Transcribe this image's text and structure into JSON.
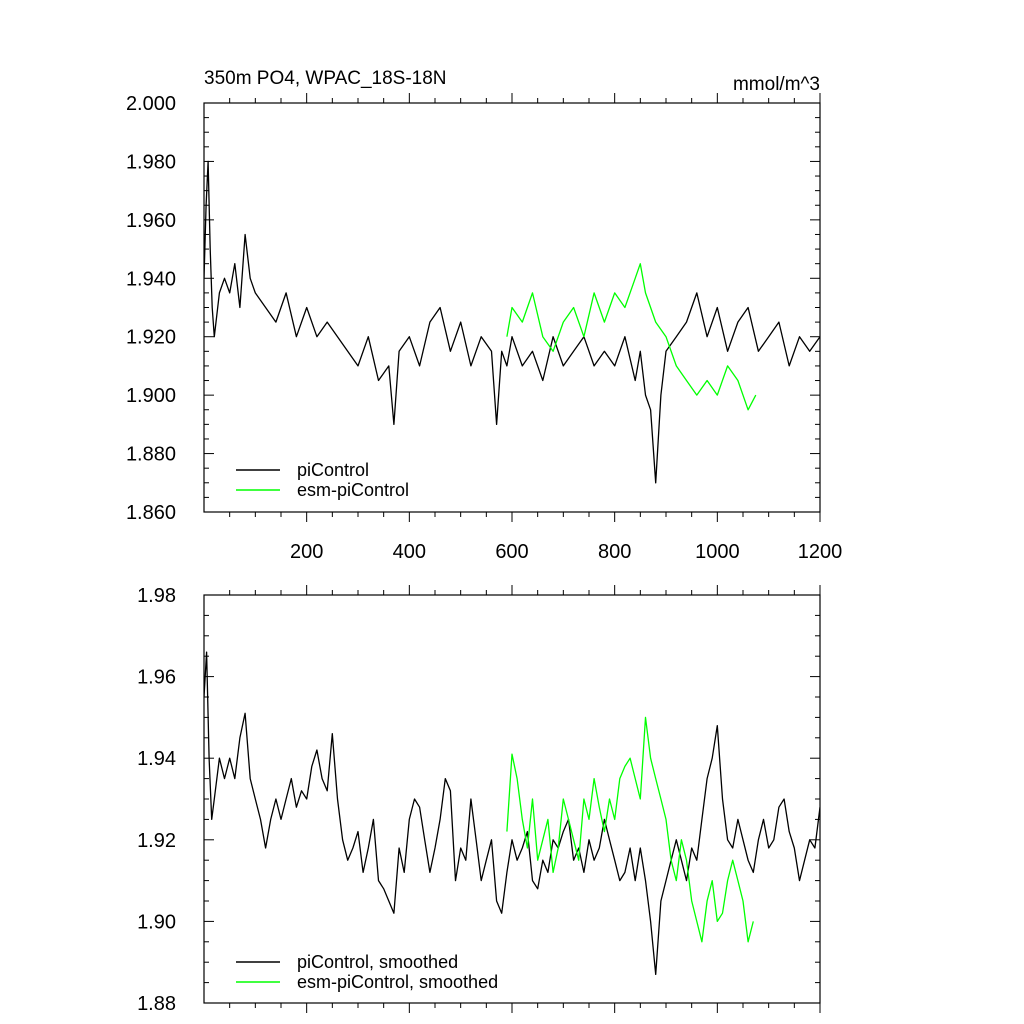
{
  "chart_data": [
    {
      "type": "line",
      "title": "350m PO4, WPAC_18S-18N",
      "units": "mmol/m^3",
      "xlim": [
        0,
        1200
      ],
      "ylim": [
        1.86,
        2.0
      ],
      "x_ticks": [
        200,
        400,
        600,
        800,
        1000,
        1200
      ],
      "x_tick_labels": [
        "200",
        "400",
        "600",
        "800",
        "1000",
        "1200"
      ],
      "y_ticks": [
        1.86,
        1.88,
        1.9,
        1.92,
        1.94,
        1.96,
        1.98,
        2.0
      ],
      "y_tick_labels": [
        "1.860",
        "1.880",
        "1.900",
        "1.920",
        "1.940",
        "1.960",
        "1.980",
        "2.000"
      ],
      "legend_position": "bottom-left",
      "grid": false,
      "series": [
        {
          "name": "piControl",
          "color": "#000000",
          "x": [
            0,
            4,
            8,
            12,
            16,
            20,
            30,
            40,
            50,
            60,
            70,
            80,
            90,
            100,
            120,
            140,
            160,
            180,
            200,
            220,
            240,
            260,
            280,
            300,
            320,
            340,
            360,
            370,
            380,
            400,
            420,
            440,
            460,
            480,
            500,
            520,
            540,
            560,
            570,
            580,
            590,
            600,
            620,
            640,
            660,
            680,
            700,
            720,
            740,
            760,
            780,
            800,
            820,
            840,
            850,
            860,
            870,
            880,
            890,
            900,
            920,
            940,
            960,
            980,
            1000,
            1020,
            1040,
            1060,
            1080,
            1100,
            1120,
            1140,
            1160,
            1180,
            1200
          ],
          "y": [
            1.94,
            1.965,
            1.98,
            1.95,
            1.93,
            1.92,
            1.935,
            1.94,
            1.935,
            1.945,
            1.93,
            1.955,
            1.94,
            1.935,
            1.93,
            1.925,
            1.935,
            1.92,
            1.93,
            1.92,
            1.925,
            1.92,
            1.915,
            1.91,
            1.92,
            1.905,
            1.91,
            1.89,
            1.915,
            1.92,
            1.91,
            1.925,
            1.93,
            1.915,
            1.925,
            1.91,
            1.92,
            1.915,
            1.89,
            1.915,
            1.91,
            1.92,
            1.91,
            1.915,
            1.905,
            1.92,
            1.91,
            1.915,
            1.92,
            1.91,
            1.915,
            1.91,
            1.92,
            1.905,
            1.915,
            1.9,
            1.895,
            1.87,
            1.9,
            1.915,
            1.92,
            1.925,
            1.935,
            1.92,
            1.93,
            1.915,
            1.925,
            1.93,
            1.915,
            1.92,
            1.925,
            1.91,
            1.92,
            1.915,
            1.92
          ]
        },
        {
          "name": "esm-piControl",
          "color": "#00ff00",
          "x": [
            590,
            600,
            620,
            640,
            660,
            680,
            700,
            720,
            740,
            760,
            780,
            800,
            820,
            840,
            850,
            860,
            880,
            900,
            920,
            940,
            960,
            980,
            1000,
            1020,
            1040,
            1060,
            1075
          ],
          "y": [
            1.92,
            1.93,
            1.925,
            1.935,
            1.92,
            1.915,
            1.925,
            1.93,
            1.92,
            1.935,
            1.925,
            1.935,
            1.93,
            1.94,
            1.945,
            1.935,
            1.925,
            1.92,
            1.91,
            1.905,
            1.9,
            1.905,
            1.9,
            1.91,
            1.905,
            1.895,
            1.9
          ]
        }
      ]
    },
    {
      "type": "line",
      "xlim": [
        0,
        1200
      ],
      "ylim": [
        1.88,
        1.98
      ],
      "y_ticks": [
        1.88,
        1.9,
        1.92,
        1.94,
        1.96,
        1.98
      ],
      "y_tick_labels": [
        "1.88",
        "1.90",
        "1.92",
        "1.94",
        "1.96",
        "1.98"
      ],
      "x_ticks": [
        200,
        400,
        600,
        800,
        1000,
        1200
      ],
      "legend_position": "bottom-left",
      "grid": false,
      "series": [
        {
          "name": "piControl, smoothed",
          "color": "#000000",
          "x": [
            0,
            5,
            10,
            15,
            20,
            30,
            40,
            50,
            60,
            70,
            80,
            90,
            100,
            110,
            120,
            130,
            140,
            150,
            160,
            170,
            180,
            190,
            200,
            210,
            220,
            230,
            240,
            250,
            260,
            270,
            280,
            290,
            300,
            310,
            320,
            330,
            340,
            350,
            360,
            370,
            380,
            390,
            400,
            410,
            420,
            430,
            440,
            450,
            460,
            470,
            480,
            490,
            500,
            510,
            520,
            530,
            540,
            550,
            560,
            570,
            580,
            590,
            600,
            610,
            620,
            630,
            640,
            650,
            660,
            670,
            680,
            690,
            700,
            710,
            720,
            730,
            740,
            750,
            760,
            770,
            780,
            790,
            800,
            810,
            820,
            830,
            840,
            850,
            860,
            870,
            880,
            890,
            900,
            910,
            920,
            930,
            940,
            950,
            960,
            970,
            980,
            990,
            1000,
            1010,
            1020,
            1030,
            1040,
            1050,
            1060,
            1070,
            1080,
            1090,
            1100,
            1110,
            1120,
            1130,
            1140,
            1150,
            1160,
            1170,
            1180,
            1190,
            1200
          ],
          "y": [
            1.955,
            1.966,
            1.94,
            1.925,
            1.93,
            1.94,
            1.935,
            1.94,
            1.935,
            1.945,
            1.951,
            1.935,
            1.93,
            1.925,
            1.918,
            1.925,
            1.93,
            1.925,
            1.93,
            1.935,
            1.928,
            1.932,
            1.93,
            1.938,
            1.942,
            1.935,
            1.932,
            1.946,
            1.93,
            1.92,
            1.915,
            1.918,
            1.922,
            1.912,
            1.918,
            1.925,
            1.91,
            1.908,
            1.905,
            1.902,
            1.918,
            1.912,
            1.925,
            1.93,
            1.928,
            1.92,
            1.912,
            1.918,
            1.925,
            1.935,
            1.932,
            1.91,
            1.918,
            1.915,
            1.93,
            1.92,
            1.91,
            1.915,
            1.92,
            1.905,
            1.902,
            1.912,
            1.92,
            1.915,
            1.918,
            1.922,
            1.91,
            1.908,
            1.915,
            1.912,
            1.92,
            1.918,
            1.922,
            1.925,
            1.915,
            1.918,
            1.912,
            1.92,
            1.915,
            1.918,
            1.925,
            1.92,
            1.915,
            1.91,
            1.912,
            1.918,
            1.91,
            1.918,
            1.91,
            1.9,
            1.887,
            1.905,
            1.91,
            1.915,
            1.92,
            1.915,
            1.91,
            1.918,
            1.915,
            1.925,
            1.935,
            1.94,
            1.948,
            1.93,
            1.92,
            1.918,
            1.925,
            1.92,
            1.915,
            1.912,
            1.92,
            1.925,
            1.918,
            1.92,
            1.928,
            1.93,
            1.922,
            1.918,
            1.91,
            1.915,
            1.92,
            1.918,
            1.928
          ]
        },
        {
          "name": "esm-piControl, smoothed",
          "color": "#00ff00",
          "x": [
            590,
            600,
            610,
            620,
            630,
            640,
            650,
            660,
            670,
            680,
            690,
            700,
            710,
            720,
            730,
            740,
            750,
            760,
            770,
            780,
            790,
            800,
            810,
            820,
            830,
            840,
            850,
            860,
            870,
            880,
            890,
            900,
            910,
            920,
            930,
            940,
            950,
            960,
            970,
            980,
            990,
            1000,
            1010,
            1020,
            1030,
            1040,
            1050,
            1060,
            1070
          ],
          "y": [
            1.922,
            1.941,
            1.935,
            1.925,
            1.918,
            1.93,
            1.915,
            1.92,
            1.925,
            1.912,
            1.918,
            1.93,
            1.925,
            1.92,
            1.915,
            1.93,
            1.925,
            1.935,
            1.928,
            1.922,
            1.93,
            1.925,
            1.935,
            1.938,
            1.94,
            1.935,
            1.93,
            1.95,
            1.94,
            1.935,
            1.93,
            1.925,
            1.915,
            1.91,
            1.92,
            1.915,
            1.905,
            1.9,
            1.895,
            1.905,
            1.91,
            1.9,
            1.902,
            1.91,
            1.915,
            1.91,
            1.905,
            1.895,
            1.9
          ]
        }
      ]
    }
  ]
}
